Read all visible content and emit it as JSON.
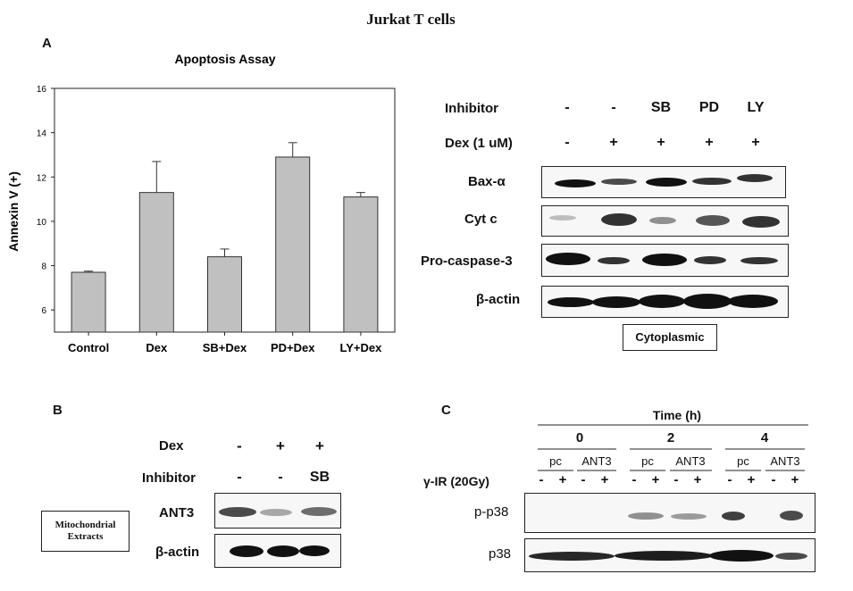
{
  "figure_title": "Jurkat  T cells",
  "panel_a": {
    "letter": "A",
    "chart_data": {
      "type": "bar",
      "title": "Apoptosis Assay",
      "xlabel": "",
      "ylabel": "Annexin V (+)",
      "categories": [
        "Control",
        "Dex",
        "SB+Dex",
        "PD+Dex",
        "LY+Dex"
      ],
      "values": [
        7.7,
        11.3,
        8.4,
        12.9,
        11.1
      ],
      "errors": [
        0.05,
        1.4,
        0.35,
        0.65,
        0.2
      ],
      "ylim": [
        5,
        16
      ],
      "yticks": [
        "6",
        "8",
        "10",
        "12",
        "14",
        "16"
      ],
      "ytick_values": [
        6,
        8,
        10,
        12,
        14,
        16
      ],
      "bar_color": "#c0c0c0",
      "grid": false
    },
    "western": {
      "inhibitor_label": "Inhibitor",
      "inhibitor_values": [
        "-",
        "-",
        "SB",
        "PD",
        "LY"
      ],
      "dex_label": "Dex (1 uM)",
      "dex_values": [
        "-",
        "+",
        "+",
        "+",
        "+"
      ],
      "rows": [
        "Bax-α",
        "Cyt c",
        "Pro-caspase-3",
        "β-actin"
      ],
      "fraction_label": "Cytoplasmic"
    }
  },
  "panel_b": {
    "letter": "B",
    "dex_label": "Dex",
    "dex_values": [
      "-",
      "+",
      "+"
    ],
    "inhibitor_label": "Inhibitor",
    "inhibitor_values": [
      "-",
      "-",
      "SB"
    ],
    "rows": [
      "ANT3",
      "β-actin"
    ],
    "fraction_label_line1": "Mitochondrial",
    "fraction_label_line2": "Extracts"
  },
  "panel_c": {
    "letter": "C",
    "time_label": "Time (h)",
    "times": [
      "0",
      "2",
      "4"
    ],
    "groups": [
      "pc",
      "ANT3",
      "pc",
      "ANT3",
      "pc",
      "ANT3"
    ],
    "ir_label": "γ-IR (20Gy)",
    "ir_values": [
      "-",
      "+",
      "-",
      "+",
      "-",
      "+",
      "-",
      "+",
      "-",
      "+",
      "-",
      "+"
    ],
    "rows": [
      "p-p38",
      "p38"
    ]
  }
}
